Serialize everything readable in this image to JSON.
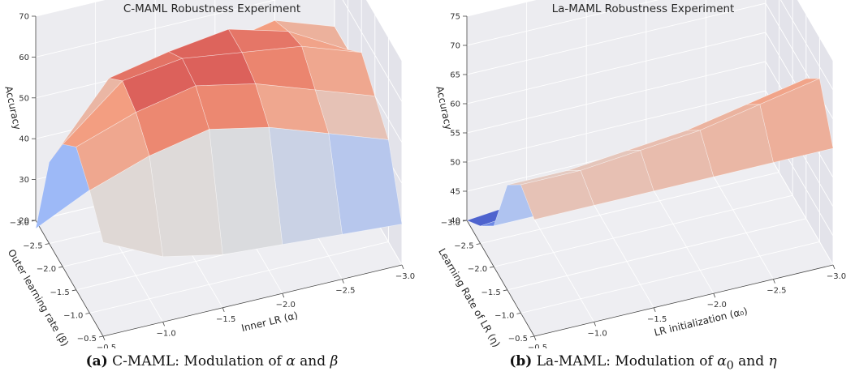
{
  "chart_data": [
    {
      "type": "surface",
      "title": "C-MAML Robustness Experiment",
      "xlabel": "Inner LR (α)",
      "ylabel": "Outer learning rate (β)",
      "zlabel": "Accuracy",
      "x_ticks": [
        "−0.5",
        "−1.0",
        "−1.5",
        "−2.0",
        "−2.5",
        "−3.0"
      ],
      "y_ticks": [
        "−0.5",
        "−1.0",
        "−1.5",
        "−2.0",
        "−2.5",
        "−3.0"
      ],
      "z_ticks": [
        "20",
        "30",
        "40",
        "50",
        "60",
        "70"
      ],
      "x": [
        -0.5,
        -1.0,
        -1.5,
        -2.0,
        -2.5,
        -3.0
      ],
      "y": [
        -0.5,
        -1.0,
        -1.5,
        -2.0,
        -2.5,
        -3.0
      ],
      "zlim": [
        20,
        70
      ],
      "grid": true,
      "colormap": "coolwarm",
      "z": [
        [
          43,
          36,
          33,
          32,
          31,
          30
        ],
        [
          50,
          55,
          58,
          55,
          50,
          45
        ],
        [
          55,
          60,
          63,
          60,
          55,
          50
        ],
        [
          50,
          62,
          64,
          62,
          60,
          55
        ],
        [
          40,
          57,
          60,
          62,
          58,
          50
        ],
        [
          18,
          25,
          40,
          52,
          55,
          50
        ]
      ]
    },
    {
      "type": "surface",
      "title": "La-MAML Robustness Experiment",
      "xlabel": "LR initialization (α₀)",
      "ylabel": "Learning Rate of LR (η)",
      "zlabel": "Accuracy",
      "x_ticks": [
        "−0.5",
        "−1.0",
        "−1.5",
        "−2.0",
        "−2.5",
        "−3.0"
      ],
      "y_ticks": [
        "−0.5",
        "−1.0",
        "−1.5",
        "−2.0",
        "−2.5",
        "−3.0"
      ],
      "z_ticks": [
        "40",
        "45",
        "50",
        "55",
        "60",
        "65",
        "70",
        "75"
      ],
      "x": [
        -0.5,
        -1.0,
        -1.5,
        -2.0,
        -2.5,
        -3.0
      ],
      "y": [
        -0.5,
        -1.0,
        -1.5,
        -2.0,
        -2.5,
        -3.0
      ],
      "zlim": [
        40,
        75
      ],
      "grid": true,
      "colormap": "coolwarm",
      "z": [
        [
          60,
          60,
          60,
          60,
          60,
          60
        ],
        [
          62,
          62,
          63,
          64,
          66,
          68
        ],
        [
          58,
          58,
          59,
          60,
          62,
          64
        ],
        [
          47,
          47,
          49,
          51,
          53,
          55
        ],
        [
          43,
          44,
          45,
          46,
          47,
          48
        ],
        [
          40,
          41,
          42,
          43,
          44,
          45
        ]
      ]
    }
  ],
  "captions": {
    "a": {
      "tag": "(a)",
      "text": "C-MAML: Modulation of",
      "v1": "α",
      "and": "and",
      "v2": "β"
    },
    "b": {
      "tag": "(b)",
      "text": "La-MAML: Modulation of",
      "v1": "α",
      "v1sub": "0",
      "and": "and",
      "v2": "η"
    }
  }
}
